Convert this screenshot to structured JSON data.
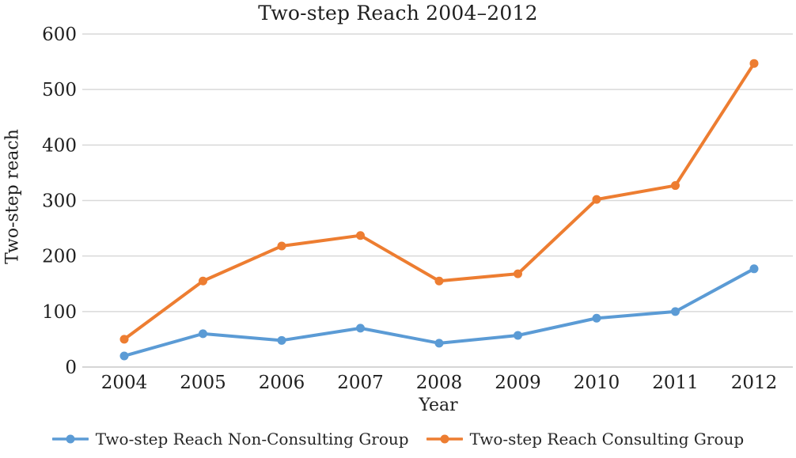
{
  "chart_data": {
    "type": "line",
    "title": "Two-step Reach 2004–2012",
    "xlabel": "Year",
    "ylabel": "Two-step reach",
    "categories": [
      "2004",
      "2005",
      "2006",
      "2007",
      "2008",
      "2009",
      "2010",
      "2011",
      "2012"
    ],
    "series": [
      {
        "name": "Two-step Reach Non-Consulting Group",
        "color": "#5B9BD5",
        "values": [
          20,
          60,
          48,
          70,
          43,
          57,
          88,
          100,
          177
        ]
      },
      {
        "name": "Two-step Reach Consulting Group",
        "color": "#ED7D31",
        "values": [
          50,
          155,
          218,
          237,
          155,
          168,
          302,
          327,
          547
        ]
      }
    ],
    "ylim": [
      0,
      600
    ],
    "yticks": [
      0,
      100,
      200,
      300,
      400,
      500,
      600
    ],
    "grid": "horizontal",
    "legend_position": "bottom",
    "gridline_color": "#D9D9D9",
    "axisline_color": "#C9C9C9",
    "text_color": "#1f1f1f",
    "background": "#ffffff"
  }
}
